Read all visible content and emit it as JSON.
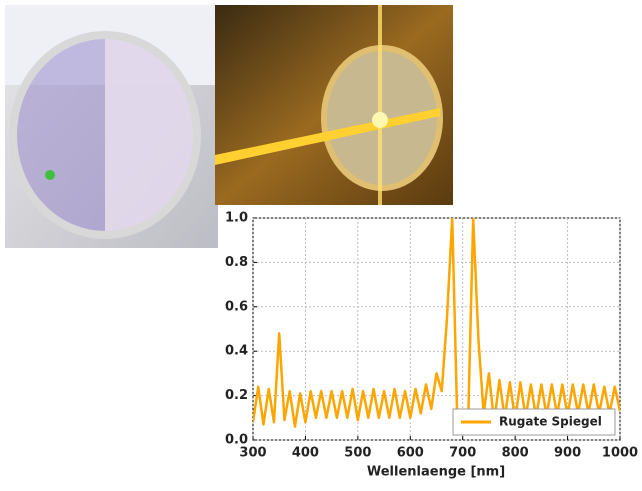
{
  "chart_data": {
    "type": "line",
    "x_label": "Wellenlaenge [nm]",
    "x": [
      300,
      310,
      320,
      330,
      340,
      350,
      360,
      370,
      380,
      390,
      400,
      410,
      420,
      430,
      440,
      450,
      460,
      470,
      480,
      490,
      500,
      510,
      520,
      530,
      540,
      550,
      560,
      570,
      580,
      590,
      600,
      610,
      620,
      630,
      640,
      650,
      660,
      670,
      680,
      690,
      700,
      710,
      720,
      730,
      740,
      750,
      760,
      770,
      780,
      790,
      800,
      810,
      820,
      830,
      840,
      850,
      860,
      870,
      880,
      890,
      900,
      910,
      920,
      930,
      940,
      950,
      960,
      970,
      980,
      990,
      1000
    ],
    "series": [
      {
        "name": "Rugate Spiegel",
        "color": "#ffa500",
        "values": [
          0.08,
          0.24,
          0.07,
          0.23,
          0.08,
          0.48,
          0.09,
          0.22,
          0.06,
          0.21,
          0.08,
          0.22,
          0.1,
          0.22,
          0.1,
          0.22,
          0.1,
          0.22,
          0.1,
          0.23,
          0.09,
          0.22,
          0.1,
          0.23,
          0.1,
          0.22,
          0.1,
          0.23,
          0.1,
          0.22,
          0.1,
          0.23,
          0.12,
          0.25,
          0.14,
          0.3,
          0.22,
          0.55,
          1.0,
          0.05,
          0.03,
          0.05,
          1.0,
          0.45,
          0.12,
          0.3,
          0.08,
          0.27,
          0.1,
          0.26,
          0.09,
          0.26,
          0.1,
          0.25,
          0.1,
          0.25,
          0.11,
          0.25,
          0.11,
          0.25,
          0.11,
          0.25,
          0.12,
          0.25,
          0.12,
          0.25,
          0.12,
          0.24,
          0.12,
          0.24,
          0.13
        ]
      }
    ],
    "xlim": [
      300,
      1000
    ],
    "xticks": [
      300,
      400,
      500,
      600,
      700,
      800,
      900,
      1000
    ],
    "ylim": [
      0,
      1
    ],
    "yticks": [
      {
        "value": 0,
        "label": "0.0"
      },
      0.2,
      0.4,
      0.6,
      0.8,
      {
        "value": 1,
        "label": "1.0"
      }
    ],
    "grid": true,
    "legend": "lower right"
  }
}
